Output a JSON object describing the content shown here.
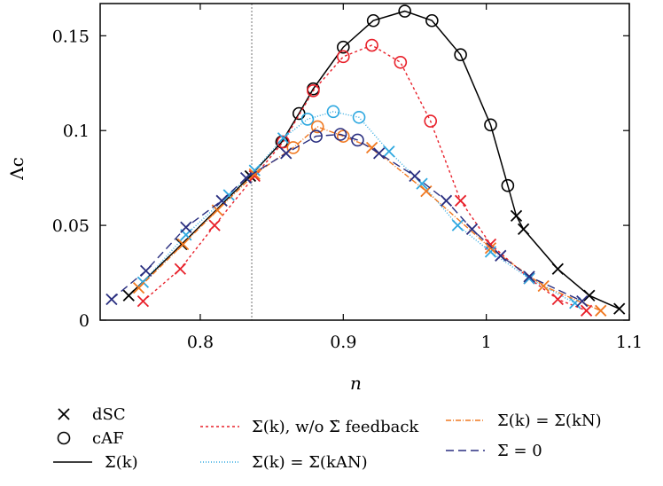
{
  "chart_data": {
    "type": "line",
    "xlabel": "n",
    "ylabel": "Λc",
    "xlim": [
      0.73,
      1.1
    ],
    "ylim": [
      0,
      0.167
    ],
    "x_ticks": [
      0.8,
      0.9,
      1.0,
      1.1
    ],
    "x_tick_labels": [
      "0.8",
      "0.9",
      "1",
      "1.1"
    ],
    "y_ticks": [
      0,
      0.05,
      0.1,
      0.15
    ],
    "y_tick_labels": [
      "0",
      "0.05",
      "0.1",
      "0.15"
    ],
    "vertical_reference_line_x": 0.836,
    "legend_marker_entries": [
      {
        "marker": "cross",
        "label": "dSC"
      },
      {
        "marker": "circle",
        "label": "cAF"
      }
    ],
    "series": [
      {
        "name": "Σ(k)",
        "color": "#000000",
        "dash": "",
        "points": [
          {
            "x": 0.75,
            "y": 0.013,
            "m": "x"
          },
          {
            "x": 0.787,
            "y": 0.04,
            "m": "x"
          },
          {
            "x": 0.835,
            "y": 0.076,
            "m": "x"
          },
          {
            "x": 0.857,
            "y": 0.094,
            "m": "o"
          },
          {
            "x": 0.869,
            "y": 0.109,
            "m": "o"
          },
          {
            "x": 0.879,
            "y": 0.122,
            "m": "o"
          },
          {
            "x": 0.9,
            "y": 0.144,
            "m": "o"
          },
          {
            "x": 0.921,
            "y": 0.158,
            "m": "o"
          },
          {
            "x": 0.943,
            "y": 0.163,
            "m": "o"
          },
          {
            "x": 0.962,
            "y": 0.158,
            "m": "o"
          },
          {
            "x": 0.982,
            "y": 0.14,
            "m": "o"
          },
          {
            "x": 1.003,
            "y": 0.103,
            "m": "o"
          },
          {
            "x": 1.015,
            "y": 0.071,
            "m": "o"
          },
          {
            "x": 1.021,
            "y": 0.055,
            "m": "x"
          },
          {
            "x": 1.026,
            "y": 0.048,
            "m": "x"
          },
          {
            "x": 1.05,
            "y": 0.027,
            "m": "x"
          },
          {
            "x": 1.072,
            "y": 0.013,
            "m": "x"
          },
          {
            "x": 1.093,
            "y": 0.006,
            "m": "x"
          }
        ]
      },
      {
        "name": "Σ(k), w/o Σ̇ feedback",
        "color": "#e8202a",
        "dash": "3,3",
        "points": [
          {
            "x": 0.76,
            "y": 0.01,
            "m": "x"
          },
          {
            "x": 0.786,
            "y": 0.027,
            "m": "x"
          },
          {
            "x": 0.81,
            "y": 0.05,
            "m": "x"
          },
          {
            "x": 0.838,
            "y": 0.076,
            "m": "x"
          },
          {
            "x": 0.858,
            "y": 0.094,
            "m": "o"
          },
          {
            "x": 0.879,
            "y": 0.121,
            "m": "o"
          },
          {
            "x": 0.9,
            "y": 0.139,
            "m": "o"
          },
          {
            "x": 0.92,
            "y": 0.145,
            "m": "o"
          },
          {
            "x": 0.94,
            "y": 0.136,
            "m": "o"
          },
          {
            "x": 0.961,
            "y": 0.105,
            "m": "o"
          },
          {
            "x": 0.982,
            "y": 0.063,
            "m": "x"
          },
          {
            "x": 1.003,
            "y": 0.04,
            "m": "x"
          },
          {
            "x": 1.03,
            "y": 0.022,
            "m": "x"
          },
          {
            "x": 1.05,
            "y": 0.011,
            "m": "x"
          },
          {
            "x": 1.07,
            "y": 0.005,
            "m": "x"
          }
        ]
      },
      {
        "name": "Σ(k) = Σ(kAN)",
        "color": "#2ea8e0",
        "dash": "1,2",
        "points": [
          {
            "x": 0.76,
            "y": 0.02,
            "m": "x"
          },
          {
            "x": 0.79,
            "y": 0.045,
            "m": "x"
          },
          {
            "x": 0.82,
            "y": 0.066,
            "m": "x"
          },
          {
            "x": 0.838,
            "y": 0.079,
            "m": "x"
          },
          {
            "x": 0.858,
            "y": 0.096,
            "m": "x"
          },
          {
            "x": 0.875,
            "y": 0.106,
            "m": "o"
          },
          {
            "x": 0.893,
            "y": 0.11,
            "m": "o"
          },
          {
            "x": 0.911,
            "y": 0.107,
            "m": "o"
          },
          {
            "x": 0.932,
            "y": 0.089,
            "m": "x"
          },
          {
            "x": 0.955,
            "y": 0.072,
            "m": "x"
          },
          {
            "x": 0.98,
            "y": 0.05,
            "m": "x"
          },
          {
            "x": 1.003,
            "y": 0.036,
            "m": "x"
          },
          {
            "x": 1.03,
            "y": 0.022,
            "m": "x"
          },
          {
            "x": 1.062,
            "y": 0.009,
            "m": "x"
          }
        ]
      },
      {
        "name": "Σ(k) = Σ(kN)",
        "color": "#f07820",
        "dash": "6,2,1,2",
        "points": [
          {
            "x": 0.757,
            "y": 0.017,
            "m": "x"
          },
          {
            "x": 0.788,
            "y": 0.04,
            "m": "x"
          },
          {
            "x": 0.812,
            "y": 0.058,
            "m": "x"
          },
          {
            "x": 0.838,
            "y": 0.077,
            "m": "x"
          },
          {
            "x": 0.865,
            "y": 0.091,
            "m": "o"
          },
          {
            "x": 0.882,
            "y": 0.102,
            "m": "o"
          },
          {
            "x": 0.9,
            "y": 0.097,
            "m": "o"
          },
          {
            "x": 0.92,
            "y": 0.091,
            "m": "x"
          },
          {
            "x": 0.958,
            "y": 0.068,
            "m": "x"
          },
          {
            "x": 1.003,
            "y": 0.038,
            "m": "x"
          },
          {
            "x": 1.04,
            "y": 0.018,
            "m": "x"
          },
          {
            "x": 1.08,
            "y": 0.005,
            "m": "x"
          }
        ]
      },
      {
        "name": "Σ = 0",
        "color": "#2a2f80",
        "dash": "9,5",
        "points": [
          {
            "x": 0.738,
            "y": 0.011,
            "m": "x"
          },
          {
            "x": 0.762,
            "y": 0.026,
            "m": "x"
          },
          {
            "x": 0.79,
            "y": 0.049,
            "m": "x"
          },
          {
            "x": 0.815,
            "y": 0.063,
            "m": "x"
          },
          {
            "x": 0.832,
            "y": 0.075,
            "m": "x"
          },
          {
            "x": 0.86,
            "y": 0.088,
            "m": "x"
          },
          {
            "x": 0.881,
            "y": 0.097,
            "m": "o"
          },
          {
            "x": 0.898,
            "y": 0.098,
            "m": "o"
          },
          {
            "x": 0.91,
            "y": 0.095,
            "m": "o"
          },
          {
            "x": 0.925,
            "y": 0.088,
            "m": "x"
          },
          {
            "x": 0.95,
            "y": 0.076,
            "m": "x"
          },
          {
            "x": 0.972,
            "y": 0.063,
            "m": "x"
          },
          {
            "x": 0.99,
            "y": 0.048,
            "m": "x"
          },
          {
            "x": 1.01,
            "y": 0.034,
            "m": "x"
          },
          {
            "x": 1.03,
            "y": 0.023,
            "m": "x"
          },
          {
            "x": 1.067,
            "y": 0.01,
            "m": "x"
          }
        ]
      }
    ]
  }
}
